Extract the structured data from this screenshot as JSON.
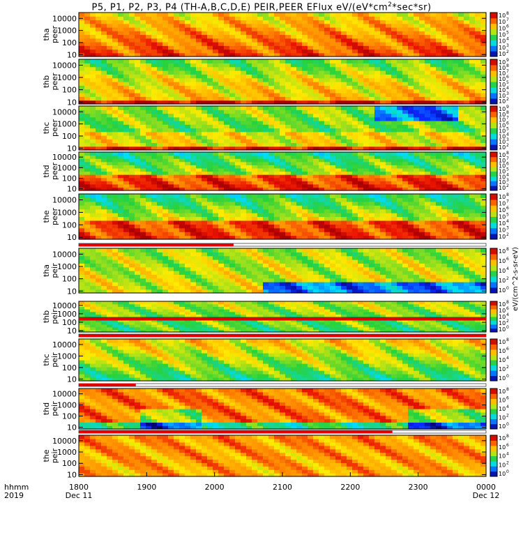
{
  "title_parts": [
    "P5, P1, P2, P3, P4 (TH-A,B,C,D,E) PEIR,PEER EFlux eV/(eV*cm",
    "2",
    "*sec*sr)"
  ],
  "chart_data": {
    "type": "heatmap",
    "title": "P5, P1, P2, P3, P4 (TH-A,B,C,D,E) PEIR,PEER EFlux eV/(eV*cm^2*sec*sr)",
    "x_time_labels": [
      "1800",
      "1900",
      "2000",
      "2100",
      "2200",
      "2300",
      "0000"
    ],
    "x_date_labels": [
      "Dec 11",
      "Dec 12"
    ],
    "x_left_labels": [
      "hhmm",
      "2019"
    ],
    "ylim": [
      7,
      30000
    ],
    "y_scale": "log",
    "y_tick_labels": [
      "10000",
      "1000",
      "100",
      "10"
    ],
    "y_tick_values": [
      10000,
      1000,
      100,
      10
    ],
    "colorbar_tick_exponents": {
      "peer_a": [
        "2",
        "3",
        "4",
        "5",
        "6",
        "7",
        "8"
      ],
      "peer_b": [
        "2",
        "3",
        "4",
        "5",
        "6",
        "7",
        "8",
        "9"
      ],
      "peer_c": [
        "2",
        "3",
        "4",
        "5",
        "6",
        "7",
        "8",
        "9"
      ],
      "peer_d": [
        "2",
        "3",
        "4",
        "5",
        "6",
        "7",
        "8"
      ],
      "peer_e": [
        "2",
        "3",
        "4",
        "5",
        "6",
        "7",
        "8"
      ],
      "peir_a": [
        "0",
        "2",
        "4",
        "6",
        "8"
      ],
      "peir_b": [
        "0",
        "2",
        "4",
        "6",
        "8"
      ],
      "peir_c": [
        "0",
        "2",
        "4",
        "6",
        "8"
      ],
      "peir_d": [
        "0",
        "2",
        "4",
        "6",
        "8"
      ],
      "peir_e": [
        "0",
        "2",
        "4",
        "6",
        "8"
      ]
    },
    "colorbar_label": "eV/(cm^2-s-sr-eV)",
    "colors": {
      "red": "#e00000",
      "orange": "#ff8000",
      "yellow": "#ffe600",
      "green": "#33cc33",
      "cyan": "#00d8ff",
      "blue": "#1040ff",
      "dark_blue": "#000080",
      "purple": "#800080",
      "black": "#000000"
    },
    "panels": [
      {
        "probe": "tha",
        "product": "peer",
        "ylabel": [
          "tha",
          "peer"
        ]
      },
      {
        "probe": "thb",
        "product": "peer",
        "ylabel": [
          "thb",
          "peer"
        ]
      },
      {
        "probe": "thc",
        "product": "peer",
        "ylabel": [
          "thc",
          "peer"
        ]
      },
      {
        "probe": "thd",
        "product": "peer",
        "ylabel": [
          "thd",
          "peer"
        ]
      },
      {
        "probe": "the",
        "product": "peer",
        "ylabel": [
          "the",
          "peer"
        ]
      },
      {
        "probe": "tha",
        "product": "peir",
        "ylabel": [
          "tha",
          "peir"
        ]
      },
      {
        "probe": "thb",
        "product": "peir",
        "ylabel": [
          "thb",
          "peir"
        ]
      },
      {
        "probe": "thc",
        "product": "peir",
        "ylabel": [
          "thc",
          "peir"
        ]
      },
      {
        "probe": "thd",
        "product": "peir",
        "ylabel": [
          "thd",
          "peir"
        ]
      },
      {
        "probe": "the",
        "product": "peir",
        "ylabel": [
          "the",
          "peir"
        ]
      }
    ]
  }
}
